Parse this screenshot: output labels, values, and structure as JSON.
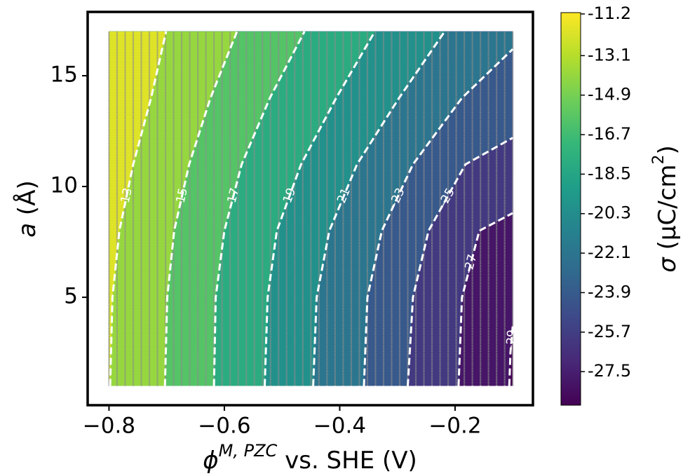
{
  "chart_data": {
    "type": "contour",
    "xlabel": {
      "symbol": "ϕ",
      "superscript": "M, PZC",
      "rest": " vs. SHE (V)"
    },
    "ylabel": {
      "symbol": "a",
      "rest": " (Å)"
    },
    "colorbar_label": {
      "symbol": "σ",
      "rest": " (μC/cm",
      "superscript": "2",
      "end": ")"
    },
    "xlim": [
      -0.837,
      -0.065
    ],
    "xticks": [
      {
        "value": -0.8,
        "label": "−0.8"
      },
      {
        "value": -0.6,
        "label": "−0.6"
      },
      {
        "value": -0.4,
        "label": "−0.4"
      },
      {
        "value": -0.2,
        "label": "−0.2"
      }
    ],
    "ylim": [
      0.13,
      17.88
    ],
    "yticks": [
      5,
      10,
      15
    ],
    "clim": [
      -11.14,
      -29.03
    ],
    "cticks": [
      -11.2,
      -13.1,
      -14.9,
      -16.7,
      -18.5,
      -20.3,
      -22.1,
      -23.9,
      -25.7,
      -27.5
    ],
    "colormap": "viridis",
    "contour_color": "#ffffff",
    "sample_color": "#8c8c8c",
    "sample_grid": {
      "x_start": -0.8,
      "x_end": -0.1,
      "count": 51,
      "y_start": 1,
      "y_end": 17
    },
    "contours": [
      {
        "level": -13,
        "x": [
          -0.798,
          -0.794,
          -0.782,
          -0.758,
          -0.727,
          -0.701
        ],
        "y": [
          1,
          5,
          8,
          11,
          14,
          17
        ]
      },
      {
        "level": -15,
        "x": [
          -0.703,
          -0.699,
          -0.687,
          -0.661,
          -0.624,
          -0.578
        ],
        "y": [
          1,
          5,
          8,
          11,
          14,
          17
        ]
      },
      {
        "level": -17,
        "x": [
          -0.618,
          -0.615,
          -0.6,
          -0.57,
          -0.521,
          -0.461
        ],
        "y": [
          1,
          5,
          8,
          11,
          14,
          17
        ]
      },
      {
        "level": -19,
        "x": [
          -0.53,
          -0.525,
          -0.509,
          -0.467,
          -0.406,
          -0.339
        ],
        "y": [
          1,
          5,
          8,
          11,
          14,
          17
        ]
      },
      {
        "level": -21,
        "x": [
          -0.446,
          -0.44,
          -0.418,
          -0.37,
          -0.297,
          -0.218
        ],
        "y": [
          1,
          5,
          8,
          11,
          14,
          17
        ]
      },
      {
        "level": -23,
        "x": [
          -0.358,
          -0.352,
          -0.327,
          -0.273,
          -0.188,
          -0.1
        ],
        "y": [
          1,
          5,
          8,
          11,
          14,
          16.2
        ]
      },
      {
        "level": -25,
        "x": [
          -0.282,
          -0.273,
          -0.246,
          -0.182,
          -0.1
        ],
        "y": [
          1,
          5,
          8,
          11,
          12.2
        ]
      },
      {
        "level": -27,
        "x": [
          -0.194,
          -0.188,
          -0.158,
          -0.1
        ],
        "y": [
          1,
          5,
          8,
          8.8
        ]
      },
      {
        "level": -29,
        "x": [
          -0.106,
          -0.104,
          -0.1
        ],
        "y": [
          1,
          2.5,
          3.7
        ]
      }
    ]
  }
}
